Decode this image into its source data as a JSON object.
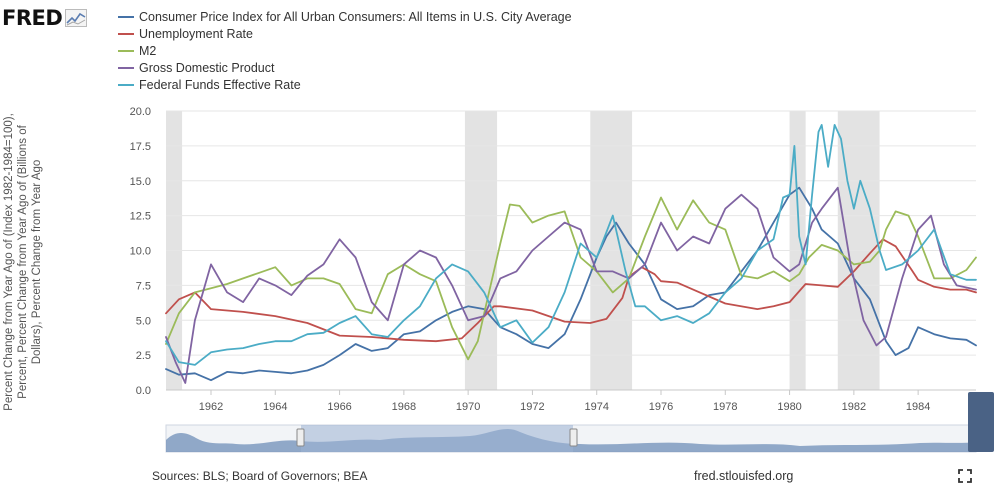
{
  "logo": {
    "text": "FRED",
    "icon": "fred-graph-icon"
  },
  "footer": {
    "sources": "Sources: BLS; Board of Governors; BEA",
    "site": "fred.stlouisfed.org"
  },
  "y_axis_label": "Percent Change from Year Ago of (Index 1982-1984=100), Percent, Percent Change from Year Ago of (Billions of Dollars), Percent Change from Year Ago",
  "chart_data": {
    "type": "line",
    "xlim": [
      1960.6,
      1985.8
    ],
    "ylim": [
      0,
      20
    ],
    "yticks": [
      "0.0",
      "2.5",
      "5.0",
      "7.5",
      "10.0",
      "12.5",
      "15.0",
      "17.5",
      "20.0"
    ],
    "xticks": [
      "1962",
      "1964",
      "1966",
      "1968",
      "1970",
      "1972",
      "1974",
      "1976",
      "1978",
      "1980",
      "1982",
      "1984"
    ],
    "grid": true,
    "legend_position": "top",
    "recessions": [
      [
        1960.6,
        1961.1
      ],
      [
        1969.9,
        1970.9
      ],
      [
        1973.8,
        1975.1
      ],
      [
        1980.0,
        1980.5
      ],
      [
        1981.5,
        1982.8
      ]
    ],
    "series": [
      {
        "name": "Consumer Price Index for All Urban Consumers: All Items in U.S. City Average",
        "color": "#4572a7",
        "x": [
          1960.6,
          1961.0,
          1961.5,
          1962.0,
          1962.5,
          1963.0,
          1963.5,
          1964.0,
          1964.5,
          1965.0,
          1965.5,
          1966.0,
          1966.5,
          1967.0,
          1967.5,
          1968.0,
          1968.5,
          1969.0,
          1969.5,
          1970.0,
          1970.5,
          1971.0,
          1971.5,
          1972.0,
          1972.5,
          1973.0,
          1973.5,
          1974.0,
          1974.3,
          1974.6,
          1975.0,
          1975.5,
          1976.0,
          1976.5,
          1977.0,
          1977.5,
          1978.0,
          1978.5,
          1979.0,
          1979.5,
          1980.0,
          1980.3,
          1980.7,
          1981.0,
          1981.5,
          1982.0,
          1982.5,
          1983.0,
          1983.3,
          1983.7,
          1984.0,
          1984.5,
          1985.0,
          1985.5,
          1985.8
        ],
        "y": [
          1.5,
          1.1,
          1.2,
          0.7,
          1.3,
          1.2,
          1.4,
          1.3,
          1.2,
          1.4,
          1.8,
          2.5,
          3.3,
          2.8,
          3.0,
          4.0,
          4.2,
          5.0,
          5.6,
          6.0,
          5.8,
          4.5,
          4.0,
          3.3,
          3.0,
          4.0,
          6.5,
          9.5,
          11.0,
          12.0,
          10.5,
          9.0,
          6.5,
          5.8,
          6.0,
          6.8,
          7.0,
          8.5,
          10.0,
          12.0,
          14.0,
          14.5,
          13.0,
          11.5,
          10.5,
          8.0,
          6.5,
          3.5,
          2.5,
          3.0,
          4.5,
          4.0,
          3.7,
          3.6,
          3.2
        ]
      },
      {
        "name": "Unemployment Rate",
        "color": "#c0504d",
        "x": [
          1960.6,
          1961.0,
          1961.5,
          1962.0,
          1963.0,
          1964.0,
          1965.0,
          1966.0,
          1967.0,
          1968.0,
          1969.0,
          1969.8,
          1970.3,
          1970.8,
          1971.0,
          1972.0,
          1973.0,
          1973.8,
          1974.3,
          1974.8,
          1975.0,
          1975.4,
          1975.8,
          1976.0,
          1976.5,
          1977.0,
          1978.0,
          1979.0,
          1979.5,
          1980.0,
          1980.5,
          1981.0,
          1981.5,
          1982.0,
          1982.5,
          1982.9,
          1983.3,
          1983.8,
          1984.0,
          1984.5,
          1985.0,
          1985.5,
          1985.8
        ],
        "y": [
          5.5,
          6.5,
          7.0,
          5.8,
          5.6,
          5.3,
          4.8,
          3.9,
          3.8,
          3.6,
          3.5,
          3.7,
          4.8,
          6.0,
          6.0,
          5.7,
          4.9,
          4.8,
          5.1,
          6.6,
          8.1,
          8.8,
          8.3,
          7.8,
          7.7,
          7.2,
          6.2,
          5.8,
          6.0,
          6.3,
          7.6,
          7.5,
          7.4,
          8.5,
          9.8,
          10.8,
          10.3,
          8.6,
          7.9,
          7.4,
          7.2,
          7.2,
          7.0
        ]
      },
      {
        "name": "M2",
        "color": "#9bbb59",
        "x": [
          1960.6,
          1961.0,
          1961.5,
          1962.0,
          1962.5,
          1963.0,
          1963.5,
          1964.0,
          1964.5,
          1965.0,
          1965.5,
          1966.0,
          1966.5,
          1967.0,
          1967.5,
          1968.0,
          1968.5,
          1969.0,
          1969.5,
          1970.0,
          1970.3,
          1970.6,
          1971.0,
          1971.3,
          1971.6,
          1972.0,
          1972.5,
          1973.0,
          1973.5,
          1974.0,
          1974.5,
          1975.0,
          1975.5,
          1976.0,
          1976.5,
          1977.0,
          1977.5,
          1978.0,
          1978.5,
          1979.0,
          1979.5,
          1980.0,
          1980.3,
          1980.6,
          1981.0,
          1981.5,
          1982.0,
          1982.5,
          1982.8,
          1983.0,
          1983.3,
          1983.7,
          1984.0,
          1984.5,
          1985.0,
          1985.5,
          1985.8
        ],
        "y": [
          3.3,
          5.5,
          7.0,
          7.3,
          7.6,
          8.0,
          8.4,
          8.8,
          7.5,
          8.0,
          8.0,
          7.6,
          5.8,
          5.5,
          8.3,
          9.0,
          8.3,
          7.8,
          4.5,
          2.2,
          3.5,
          6.5,
          10.5,
          13.3,
          13.2,
          12.0,
          12.5,
          12.8,
          9.5,
          8.5,
          7.0,
          8.0,
          11.0,
          13.8,
          11.5,
          13.6,
          12.0,
          11.5,
          8.2,
          8.0,
          8.5,
          7.8,
          8.3,
          9.5,
          10.4,
          10.0,
          9.0,
          9.2,
          10.0,
          11.5,
          12.8,
          12.5,
          11.0,
          8.0,
          8.0,
          8.6,
          9.5
        ]
      },
      {
        "name": "Gross Domestic Product",
        "color": "#8064a2",
        "x": [
          1960.6,
          1960.9,
          1961.2,
          1961.5,
          1962.0,
          1962.5,
          1963.0,
          1963.5,
          1964.0,
          1964.5,
          1965.0,
          1965.5,
          1966.0,
          1966.5,
          1967.0,
          1967.5,
          1968.0,
          1968.5,
          1969.0,
          1969.5,
          1970.0,
          1970.5,
          1971.0,
          1971.5,
          1972.0,
          1972.5,
          1973.0,
          1973.5,
          1974.0,
          1974.5,
          1975.0,
          1975.5,
          1976.0,
          1976.5,
          1977.0,
          1977.5,
          1978.0,
          1978.5,
          1979.0,
          1979.5,
          1980.0,
          1980.3,
          1980.7,
          1981.0,
          1981.5,
          1981.9,
          1982.3,
          1982.7,
          1983.0,
          1983.5,
          1984.0,
          1984.4,
          1984.8,
          1985.2,
          1985.8
        ],
        "y": [
          3.8,
          2.0,
          0.5,
          5.0,
          9.0,
          7.0,
          6.3,
          8.0,
          7.5,
          6.8,
          8.2,
          9.0,
          10.8,
          9.5,
          6.3,
          5.0,
          9.0,
          10.0,
          9.5,
          7.5,
          5.0,
          5.3,
          8.0,
          8.5,
          10.0,
          11.0,
          12.0,
          11.5,
          8.5,
          8.5,
          8.0,
          9.0,
          12.0,
          10.0,
          11.0,
          10.5,
          13.0,
          14.0,
          13.0,
          9.5,
          8.5,
          9.0,
          12.0,
          13.0,
          14.5,
          9.0,
          5.0,
          3.2,
          3.8,
          8.0,
          11.5,
          12.5,
          9.0,
          7.5,
          7.2
        ]
      },
      {
        "name": "Federal Funds Effective Rate",
        "color": "#4bacc6",
        "x": [
          1960.6,
          1961.0,
          1961.5,
          1962.0,
          1962.5,
          1963.0,
          1963.5,
          1964.0,
          1964.5,
          1965.0,
          1965.5,
          1966.0,
          1966.5,
          1967.0,
          1967.5,
          1968.0,
          1968.5,
          1969.0,
          1969.5,
          1970.0,
          1970.5,
          1971.0,
          1971.5,
          1972.0,
          1972.5,
          1973.0,
          1973.5,
          1974.0,
          1974.5,
          1974.9,
          1975.2,
          1975.5,
          1976.0,
          1976.5,
          1977.0,
          1977.5,
          1978.0,
          1978.5,
          1979.0,
          1979.5,
          1979.8,
          1980.0,
          1980.15,
          1980.3,
          1980.5,
          1980.7,
          1980.9,
          1981.0,
          1981.2,
          1981.4,
          1981.6,
          1981.8,
          1982.0,
          1982.2,
          1982.5,
          1982.8,
          1983.0,
          1983.5,
          1984.0,
          1984.5,
          1985.0,
          1985.5,
          1985.8
        ],
        "y": [
          3.5,
          2.0,
          1.8,
          2.7,
          2.9,
          3.0,
          3.3,
          3.5,
          3.5,
          4.0,
          4.1,
          4.8,
          5.3,
          4.0,
          3.8,
          5.0,
          6.0,
          8.0,
          9.0,
          8.5,
          7.0,
          4.5,
          5.0,
          3.4,
          4.5,
          7.0,
          10.5,
          9.5,
          12.5,
          8.5,
          6.0,
          6.0,
          5.0,
          5.3,
          4.8,
          5.5,
          7.0,
          8.0,
          10.0,
          10.8,
          13.8,
          14.0,
          17.5,
          11.0,
          9.0,
          14.0,
          18.5,
          19.0,
          16.0,
          19.0,
          18.0,
          15.0,
          13.0,
          15.0,
          13.0,
          10.0,
          8.6,
          9.0,
          10.0,
          11.5,
          8.3,
          7.9,
          7.9
        ]
      }
    ]
  }
}
